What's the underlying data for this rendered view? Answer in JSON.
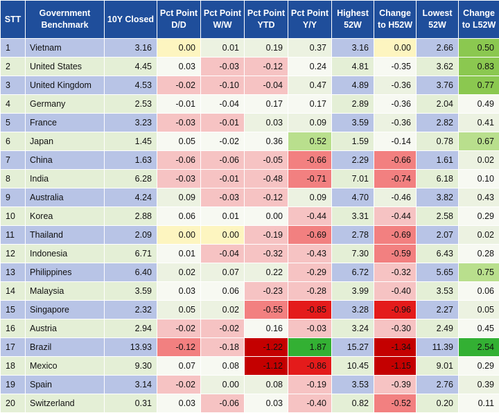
{
  "headers": [
    "STT",
    "Government Benchmark",
    "10Y Closed",
    "Pct Point D/D",
    "Pct Point W/W",
    "Pct Point YTD",
    "Pct Point Y/Y",
    "Highest 52W",
    "Change to H52W",
    "Lowest 52W",
    "Change to L52W"
  ],
  "colors": {
    "header_bg": "#1f4e9b",
    "row_blue": "#b8c4e6",
    "row_green": "#e4efd6",
    "row_white": "#f7f9f2",
    "red_light": "#f6c3c3",
    "red_medium": "#f28080",
    "red_strong": "#e41b1b",
    "red_dark": "#c40000",
    "yellow": "#fdf5c0",
    "green_light": "#b9df8d",
    "green_strong": "#8bc850",
    "green_bright": "#33b033"
  },
  "rows": [
    {
      "stt": "1",
      "country": "Vietnam",
      "c": "3.16",
      "dd": "0.00",
      "ww": "0.01",
      "ytd": "0.19",
      "yy": "0.37",
      "h52": "3.16",
      "ch52": "0.00",
      "l52": "2.66",
      "cl52": "0.50"
    },
    {
      "stt": "2",
      "country": "United States",
      "c": "4.45",
      "dd": "0.03",
      "ww": "-0.03",
      "ytd": "-0.12",
      "yy": "0.24",
      "h52": "4.81",
      "ch52": "-0.35",
      "l52": "3.62",
      "cl52": "0.83"
    },
    {
      "stt": "3",
      "country": "United Kingdom",
      "c": "4.53",
      "dd": "-0.02",
      "ww": "-0.10",
      "ytd": "-0.04",
      "yy": "0.47",
      "h52": "4.89",
      "ch52": "-0.36",
      "l52": "3.76",
      "cl52": "0.77"
    },
    {
      "stt": "4",
      "country": "Germany",
      "c": "2.53",
      "dd": "-0.01",
      "ww": "-0.04",
      "ytd": "0.17",
      "yy": "0.17",
      "h52": "2.89",
      "ch52": "-0.36",
      "l52": "2.04",
      "cl52": "0.49"
    },
    {
      "stt": "5",
      "country": "France",
      "c": "3.23",
      "dd": "-0.03",
      "ww": "-0.01",
      "ytd": "0.03",
      "yy": "0.09",
      "h52": "3.59",
      "ch52": "-0.36",
      "l52": "2.82",
      "cl52": "0.41"
    },
    {
      "stt": "6",
      "country": "Japan",
      "c": "1.45",
      "dd": "0.05",
      "ww": "-0.02",
      "ytd": "0.36",
      "yy": "0.52",
      "h52": "1.59",
      "ch52": "-0.14",
      "l52": "0.78",
      "cl52": "0.67"
    },
    {
      "stt": "7",
      "country": "China",
      "c": "1.63",
      "dd": "-0.06",
      "ww": "-0.06",
      "ytd": "-0.05",
      "yy": "-0.66",
      "h52": "2.29",
      "ch52": "-0.66",
      "l52": "1.61",
      "cl52": "0.02"
    },
    {
      "stt": "8",
      "country": "India",
      "c": "6.28",
      "dd": "-0.03",
      "ww": "-0.01",
      "ytd": "-0.48",
      "yy": "-0.71",
      "h52": "7.01",
      "ch52": "-0.74",
      "l52": "6.18",
      "cl52": "0.10"
    },
    {
      "stt": "9",
      "country": "Australia",
      "c": "4.24",
      "dd": "0.09",
      "ww": "-0.03",
      "ytd": "-0.12",
      "yy": "0.09",
      "h52": "4.70",
      "ch52": "-0.46",
      "l52": "3.82",
      "cl52": "0.43"
    },
    {
      "stt": "10",
      "country": "Korea",
      "c": "2.88",
      "dd": "0.06",
      "ww": "0.01",
      "ytd": "0.00",
      "yy": "-0.44",
      "h52": "3.31",
      "ch52": "-0.44",
      "l52": "2.58",
      "cl52": "0.29"
    },
    {
      "stt": "11",
      "country": "Thailand",
      "c": "2.09",
      "dd": "0.00",
      "ww": "0.00",
      "ytd": "-0.19",
      "yy": "-0.69",
      "h52": "2.78",
      "ch52": "-0.69",
      "l52": "2.07",
      "cl52": "0.02"
    },
    {
      "stt": "12",
      "country": "Indonesia",
      "c": "6.71",
      "dd": "0.01",
      "ww": "-0.04",
      "ytd": "-0.32",
      "yy": "-0.43",
      "h52": "7.30",
      "ch52": "-0.59",
      "l52": "6.43",
      "cl52": "0.28"
    },
    {
      "stt": "13",
      "country": "Philippines",
      "c": "6.40",
      "dd": "0.02",
      "ww": "0.07",
      "ytd": "0.22",
      "yy": "-0.29",
      "h52": "6.72",
      "ch52": "-0.32",
      "l52": "5.65",
      "cl52": "0.75"
    },
    {
      "stt": "14",
      "country": "Malaysia",
      "c": "3.59",
      "dd": "0.03",
      "ww": "0.06",
      "ytd": "-0.23",
      "yy": "-0.28",
      "h52": "3.99",
      "ch52": "-0.40",
      "l52": "3.53",
      "cl52": "0.06"
    },
    {
      "stt": "15",
      "country": "Singapore",
      "c": "2.32",
      "dd": "0.05",
      "ww": "0.02",
      "ytd": "-0.55",
      "yy": "-0.85",
      "h52": "3.28",
      "ch52": "-0.96",
      "l52": "2.27",
      "cl52": "0.05"
    },
    {
      "stt": "16",
      "country": "Austria",
      "c": "2.94",
      "dd": "-0.02",
      "ww": "-0.02",
      "ytd": "0.16",
      "yy": "-0.03",
      "h52": "3.24",
      "ch52": "-0.30",
      "l52": "2.49",
      "cl52": "0.45"
    },
    {
      "stt": "17",
      "country": "Brazil",
      "c": "13.93",
      "dd": "-0.12",
      "ww": "-0.18",
      "ytd": "-1.22",
      "yy": "1.87",
      "h52": "15.27",
      "ch52": "-1.34",
      "l52": "11.39",
      "cl52": "2.54"
    },
    {
      "stt": "18",
      "country": "Mexico",
      "c": "9.30",
      "dd": "0.07",
      "ww": "0.08",
      "ytd": "-1.12",
      "yy": "-0.86",
      "h52": "10.45",
      "ch52": "-1.15",
      "l52": "9.01",
      "cl52": "0.29"
    },
    {
      "stt": "19",
      "country": "Spain",
      "c": "3.14",
      "dd": "-0.02",
      "ww": "0.00",
      "ytd": "0.08",
      "yy": "-0.19",
      "h52": "3.53",
      "ch52": "-0.39",
      "l52": "2.76",
      "cl52": "0.39"
    },
    {
      "stt": "20",
      "country": "Switzerland",
      "c": "0.31",
      "dd": "0.03",
      "ww": "-0.06",
      "ytd": "0.03",
      "yy": "-0.40",
      "h52": "0.82",
      "ch52": "-0.52",
      "l52": "0.20",
      "cl52": "0.11"
    }
  ],
  "highlights": {
    "0": {
      "dd": "yellow",
      "ch52": "yellow",
      "cl52": "green_strong"
    },
    "1": {
      "ww": "red_light",
      "ytd": "red_light",
      "cl52": "green_strong"
    },
    "2": {
      "dd": "red_light",
      "ww": "red_light",
      "ytd": "red_light",
      "cl52": "green_strong"
    },
    "4": {
      "dd": "red_light",
      "ww": "red_light"
    },
    "5": {
      "yy": "green_light",
      "cl52": "green_light"
    },
    "6": {
      "dd": "red_light",
      "ww": "red_light",
      "ytd": "red_light",
      "yy": "red_medium",
      "ch52": "red_medium"
    },
    "7": {
      "dd": "red_light",
      "ww": "red_light",
      "ytd": "red_light",
      "yy": "red_medium",
      "ch52": "red_medium"
    },
    "8": {
      "ww": "red_light",
      "ytd": "red_light"
    },
    "9": {
      "yy": "red_light",
      "ch52": "red_light"
    },
    "10": {
      "dd": "yellow",
      "ww": "yellow",
      "ytd": "red_light",
      "yy": "red_medium",
      "ch52": "red_medium"
    },
    "11": {
      "ww": "red_light",
      "ytd": "red_light",
      "yy": "red_light",
      "ch52": "red_medium"
    },
    "12": {
      "yy": "red_light",
      "ch52": "red_light",
      "cl52": "green_light"
    },
    "13": {
      "ytd": "red_light",
      "yy": "red_light",
      "ch52": "red_light"
    },
    "14": {
      "ytd": "red_medium",
      "yy": "red_strong",
      "ch52": "red_strong"
    },
    "15": {
      "dd": "red_light",
      "ww": "red_light",
      "yy": "red_light",
      "ch52": "red_light"
    },
    "16": {
      "dd": "red_medium",
      "ww": "red_light",
      "ytd": "red_dark",
      "yy": "green_bright",
      "ch52": "red_dark",
      "cl52": "green_bright"
    },
    "17": {
      "ytd": "red_dark",
      "yy": "red_strong",
      "ch52": "red_dark"
    },
    "18": {
      "dd": "red_light",
      "yy": "red_light",
      "ch52": "red_light"
    },
    "19": {
      "ww": "red_light",
      "yy": "red_light",
      "ch52": "red_medium"
    }
  }
}
